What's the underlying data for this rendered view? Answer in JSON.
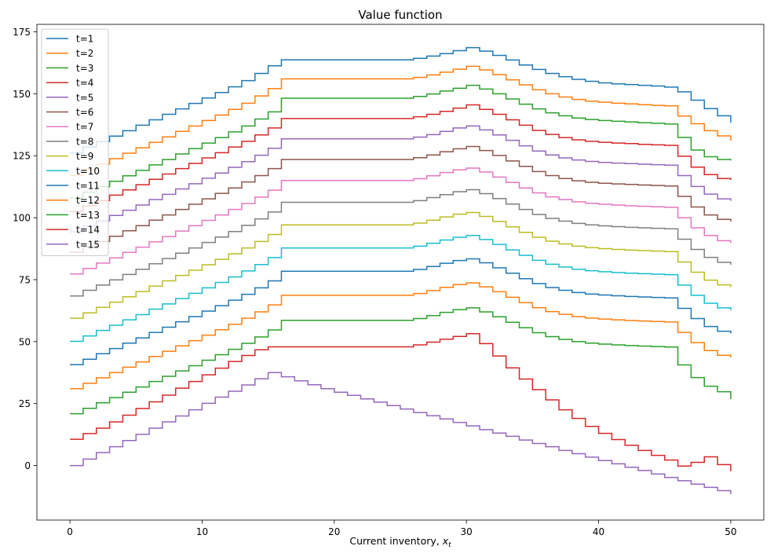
{
  "chart_data": {
    "type": "line",
    "drawstyle": "steps",
    "title": "Value function",
    "xlabel_text": "Current inventory, ",
    "xlabel_math": "x",
    "xlabel_sub": "t",
    "ylabel": "",
    "xlim": [
      -2.5,
      52.5
    ],
    "ylim": [
      -22,
      178
    ],
    "xticks": [
      0,
      10,
      20,
      30,
      40,
      50
    ],
    "yticks": [
      0,
      25,
      50,
      75,
      100,
      125,
      150,
      175
    ],
    "grid": false,
    "legend_position": "upper-left",
    "x": [
      0,
      1,
      2,
      3,
      4,
      5,
      6,
      7,
      8,
      9,
      10,
      11,
      12,
      13,
      14,
      15,
      16,
      17,
      18,
      19,
      20,
      21,
      22,
      23,
      24,
      25,
      26,
      27,
      28,
      29,
      30,
      31,
      32,
      33,
      34,
      35,
      36,
      37,
      38,
      39,
      40,
      41,
      42,
      43,
      44,
      45,
      46,
      47,
      48,
      49,
      50
    ],
    "series": [
      {
        "name": "t=1",
        "color": "#1f77b4",
        "values": [
          126.1,
          128.5,
          130.7,
          132.9,
          135.1,
          137.3,
          139.5,
          141.7,
          143.9,
          146.1,
          148.3,
          150.5,
          152.8,
          155.3,
          158.2,
          161.3,
          163.7,
          163.7,
          163.7,
          163.7,
          163.7,
          163.7,
          163.7,
          163.7,
          163.7,
          163.7,
          164.3,
          165.2,
          166.2,
          167.4,
          168.6,
          167.2,
          165.5,
          163.6,
          161.6,
          159.8,
          158.2,
          156.9,
          155.8,
          155.0,
          154.4,
          154.0,
          153.7,
          153.4,
          153.1,
          152.7,
          150.8,
          147.4,
          144.0,
          141.1,
          138.4
        ]
      },
      {
        "name": "t=2",
        "color": "#ff7f0e",
        "values": [
          117.0,
          119.4,
          121.6,
          123.8,
          126.0,
          128.2,
          130.4,
          132.6,
          134.8,
          137.0,
          139.2,
          141.4,
          143.7,
          146.2,
          149.1,
          152.1,
          156.0,
          156.0,
          156.0,
          156.0,
          156.0,
          156.0,
          156.0,
          156.0,
          156.0,
          156.0,
          156.6,
          157.6,
          158.7,
          159.9,
          161.1,
          159.6,
          157.7,
          155.6,
          153.6,
          151.6,
          150.0,
          148.7,
          147.7,
          147.0,
          146.6,
          146.2,
          145.9,
          145.6,
          145.3,
          145.1,
          141.0,
          137.9,
          135.1,
          133.0,
          131.0
        ]
      },
      {
        "name": "t=3",
        "color": "#2ca02c",
        "values": [
          108.0,
          110.3,
          112.5,
          114.7,
          116.9,
          119.1,
          121.3,
          123.5,
          125.7,
          127.9,
          130.1,
          132.3,
          134.6,
          137.0,
          139.8,
          142.7,
          148.2,
          148.2,
          148.2,
          148.2,
          148.2,
          148.2,
          148.2,
          148.2,
          148.2,
          148.2,
          148.9,
          149.9,
          151.1,
          152.2,
          153.4,
          151.9,
          150.0,
          147.9,
          145.8,
          143.9,
          142.3,
          141.1,
          140.2,
          139.6,
          139.2,
          138.9,
          138.6,
          138.3,
          138.1,
          137.8,
          132.4,
          127.3,
          124.6,
          123.5,
          123.1
        ]
      },
      {
        "name": "t=4",
        "color": "#d62728",
        "values": [
          102.5,
          104.8,
          106.9,
          109.1,
          111.2,
          113.3,
          115.5,
          117.6,
          119.8,
          121.9,
          124.1,
          126.2,
          128.5,
          130.8,
          133.4,
          136.2,
          140.0,
          140.0,
          140.0,
          140.0,
          140.0,
          140.0,
          140.0,
          140.0,
          140.0,
          140.0,
          140.7,
          141.7,
          142.9,
          144.2,
          145.5,
          143.7,
          141.7,
          139.5,
          137.3,
          135.2,
          133.6,
          132.3,
          131.4,
          130.8,
          130.4,
          130.1,
          129.9,
          129.6,
          129.4,
          129.2,
          124.8,
          120.4,
          117.4,
          115.8,
          115.2
        ]
      },
      {
        "name": "t=5",
        "color": "#9467bd",
        "values": [
          94.3,
          96.6,
          98.7,
          100.9,
          103.0,
          105.1,
          107.3,
          109.4,
          111.6,
          113.7,
          115.9,
          118.0,
          120.3,
          122.6,
          125.2,
          128.0,
          131.8,
          131.8,
          131.8,
          131.8,
          131.8,
          131.8,
          131.8,
          131.8,
          131.8,
          131.8,
          132.5,
          133.5,
          134.8,
          136.2,
          137.0,
          135.4,
          133.4,
          131.2,
          129.0,
          126.9,
          125.3,
          124.1,
          123.3,
          122.7,
          122.3,
          122.0,
          121.8,
          121.6,
          121.4,
          121.2,
          117.0,
          112.6,
          109.5,
          107.6,
          106.8
        ]
      },
      {
        "name": "t=6",
        "color": "#8c564b",
        "values": [
          86.0,
          88.2,
          90.4,
          92.5,
          94.7,
          96.8,
          99.0,
          101.1,
          103.3,
          105.4,
          107.6,
          109.8,
          112.0,
          114.4,
          117.0,
          119.8,
          123.5,
          123.5,
          123.5,
          123.5,
          123.5,
          123.5,
          123.5,
          123.5,
          123.5,
          123.5,
          124.2,
          125.3,
          126.6,
          127.8,
          128.7,
          127.1,
          125.1,
          122.9,
          120.7,
          118.6,
          117.0,
          115.8,
          114.9,
          114.3,
          113.9,
          113.6,
          113.4,
          113.2,
          113.0,
          112.8,
          108.6,
          104.3,
          101.1,
          99.3,
          98.5
        ]
      },
      {
        "name": "t=7",
        "color": "#e377c2",
        "values": [
          77.3,
          79.5,
          81.7,
          83.8,
          86.0,
          88.1,
          90.3,
          92.4,
          94.6,
          96.8,
          98.9,
          101.1,
          103.3,
          105.7,
          108.3,
          111.1,
          115.0,
          115.0,
          115.0,
          115.0,
          115.0,
          115.0,
          115.0,
          115.0,
          115.0,
          115.0,
          115.7,
          116.9,
          118.2,
          119.3,
          120.0,
          118.4,
          116.4,
          114.2,
          112.0,
          110.0,
          108.4,
          107.3,
          106.4,
          105.8,
          105.4,
          105.1,
          104.8,
          104.6,
          104.4,
          104.2,
          100.0,
          95.9,
          92.8,
          90.7,
          89.8
        ]
      },
      {
        "name": "t=8",
        "color": "#7f7f7f",
        "values": [
          68.4,
          70.7,
          72.8,
          74.9,
          77.1,
          79.2,
          81.4,
          83.5,
          85.7,
          87.8,
          90.0,
          92.2,
          94.4,
          96.9,
          99.5,
          102.3,
          106.2,
          106.2,
          106.2,
          106.2,
          106.2,
          106.2,
          106.2,
          106.2,
          106.2,
          106.2,
          106.9,
          108.1,
          109.3,
          110.5,
          111.3,
          109.7,
          107.7,
          105.5,
          103.3,
          101.3,
          99.7,
          98.6,
          97.7,
          97.1,
          96.7,
          96.4,
          96.1,
          95.9,
          95.7,
          95.5,
          91.3,
          87.2,
          84.0,
          82.0,
          81.0
        ]
      },
      {
        "name": "t=9",
        "color": "#bcbd22",
        "values": [
          59.4,
          61.6,
          63.8,
          65.9,
          68.1,
          70.2,
          72.4,
          74.5,
          76.7,
          78.8,
          81.0,
          83.2,
          85.4,
          87.8,
          90.4,
          93.2,
          97.1,
          97.1,
          97.1,
          97.1,
          97.1,
          97.1,
          97.1,
          97.1,
          97.1,
          97.1,
          97.8,
          99.0,
          100.3,
          101.4,
          102.1,
          100.5,
          98.5,
          96.3,
          94.1,
          92.1,
          90.5,
          89.4,
          88.5,
          87.9,
          87.5,
          87.2,
          86.9,
          86.7,
          86.5,
          86.3,
          82.1,
          78.0,
          74.8,
          72.9,
          72.0
        ]
      },
      {
        "name": "t=10",
        "color": "#17becf",
        "values": [
          50.1,
          52.3,
          54.5,
          56.6,
          58.8,
          60.9,
          63.1,
          65.2,
          67.4,
          69.5,
          71.7,
          73.9,
          76.1,
          78.5,
          81.1,
          83.9,
          87.8,
          87.8,
          87.8,
          87.8,
          87.8,
          87.8,
          87.8,
          87.8,
          87.8,
          87.8,
          88.5,
          89.7,
          91.0,
          92.1,
          92.8,
          91.2,
          89.2,
          87.0,
          84.8,
          82.8,
          81.2,
          80.1,
          79.2,
          78.6,
          78.2,
          77.9,
          77.6,
          77.4,
          77.2,
          77.0,
          72.8,
          68.7,
          65.5,
          63.6,
          62.7
        ]
      },
      {
        "name": "t=11",
        "color": "#1f77b4",
        "values": [
          40.7,
          42.9,
          45.1,
          47.2,
          49.4,
          51.5,
          53.7,
          55.8,
          58.0,
          60.1,
          62.3,
          64.5,
          66.7,
          69.1,
          71.7,
          74.5,
          78.4,
          78.4,
          78.4,
          78.4,
          78.4,
          78.4,
          78.4,
          78.4,
          78.4,
          78.4,
          79.1,
          80.3,
          81.6,
          82.7,
          83.4,
          81.8,
          79.8,
          77.6,
          75.4,
          73.4,
          71.8,
          70.7,
          69.8,
          69.2,
          68.8,
          68.5,
          68.2,
          68.0,
          67.8,
          67.6,
          63.4,
          59.3,
          56.1,
          54.2,
          53.3
        ]
      },
      {
        "name": "t=12",
        "color": "#ff7f0e",
        "values": [
          31.0,
          33.2,
          35.4,
          37.5,
          39.7,
          41.8,
          44.0,
          46.1,
          48.3,
          50.4,
          52.6,
          54.8,
          57.0,
          59.4,
          62.0,
          64.8,
          68.7,
          68.7,
          68.7,
          68.7,
          68.7,
          68.7,
          68.7,
          68.7,
          68.7,
          68.7,
          69.4,
          70.6,
          71.9,
          73.0,
          73.7,
          72.1,
          70.1,
          67.9,
          65.7,
          63.7,
          62.1,
          61.0,
          60.1,
          59.5,
          59.1,
          58.8,
          58.5,
          58.3,
          58.1,
          57.9,
          53.7,
          49.6,
          46.4,
          44.5,
          43.6
        ]
      },
      {
        "name": "t=13",
        "color": "#2ca02c",
        "values": [
          20.9,
          23.1,
          25.3,
          27.4,
          29.6,
          31.7,
          33.9,
          36.0,
          38.2,
          40.3,
          42.5,
          44.7,
          46.9,
          49.3,
          51.9,
          54.7,
          58.6,
          58.6,
          58.6,
          58.6,
          58.6,
          58.6,
          58.6,
          58.6,
          58.6,
          58.6,
          59.3,
          60.5,
          61.8,
          62.9,
          63.6,
          62.0,
          60.0,
          57.8,
          55.6,
          53.6,
          52.0,
          50.9,
          50.0,
          49.4,
          49.0,
          48.7,
          48.4,
          48.2,
          48.0,
          47.8,
          40.6,
          35.5,
          32.0,
          29.8,
          26.8
        ]
      },
      {
        "name": "t=14",
        "color": "#d62728",
        "values": [
          10.6,
          12.9,
          15.1,
          17.6,
          20.3,
          23.0,
          25.7,
          28.4,
          31.2,
          33.9,
          36.6,
          39.3,
          42.0,
          44.4,
          46.7,
          47.9,
          47.9,
          47.9,
          47.9,
          47.9,
          47.9,
          47.9,
          47.9,
          47.9,
          47.9,
          47.9,
          48.7,
          49.8,
          51.0,
          52.1,
          53.2,
          49.2,
          44.2,
          39.4,
          34.9,
          30.6,
          26.5,
          22.5,
          19.0,
          15.8,
          13.0,
          10.5,
          8.2,
          6.1,
          4.1,
          2.2,
          -0.2,
          1.3,
          3.5,
          0.4,
          -2.3
        ]
      },
      {
        "name": "t=15",
        "color": "#9467bd",
        "values": [
          0.0,
          2.6,
          5.2,
          7.6,
          10.1,
          12.6,
          15.1,
          17.6,
          20.0,
          22.5,
          25.1,
          27.6,
          30.0,
          32.5,
          35.0,
          37.5,
          35.8,
          34.2,
          32.6,
          31.0,
          29.6,
          28.3,
          26.9,
          25.6,
          24.2,
          22.8,
          21.4,
          20.1,
          18.8,
          17.4,
          16.0,
          14.5,
          13.1,
          11.8,
          10.3,
          8.9,
          7.6,
          6.1,
          4.8,
          3.4,
          2.0,
          0.7,
          -0.7,
          -2.0,
          -3.4,
          -4.8,
          -6.1,
          -7.5,
          -8.8,
          -10.1,
          -11.5
        ]
      }
    ]
  }
}
